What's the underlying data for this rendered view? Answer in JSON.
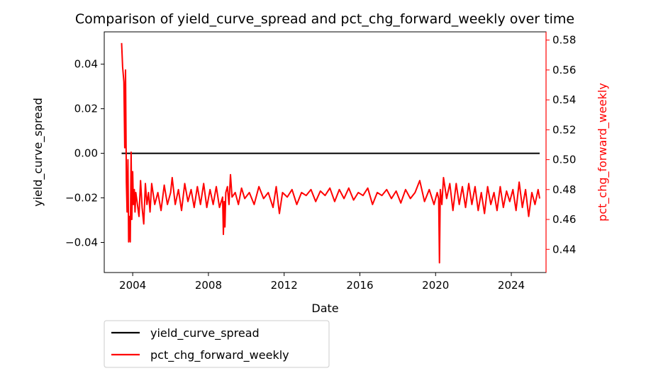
{
  "chart_data": {
    "type": "line",
    "title": "Comparison of yield_curve_spread and pct_chg_forward_weekly over time",
    "xlabel": "Date",
    "ylabel_left": "yield_curve_spread",
    "ylabel_right": "pct_chg_forward_weekly",
    "x_ticks": [
      "2004",
      "2008",
      "2012",
      "2016",
      "2020",
      "2024"
    ],
    "left_ticks": [
      "−0.04",
      "−0.02",
      "0.00",
      "0.02",
      "0.04"
    ],
    "right_ticks": [
      "0.44",
      "0.46",
      "0.48",
      "0.50",
      "0.52",
      "0.54",
      "0.56",
      "0.58"
    ],
    "xlim": [
      "2002-07-01",
      "2025-11-01"
    ],
    "ylim_left": [
      -0.0535,
      0.0545
    ],
    "ylim_right": [
      0.4245,
      0.5855
    ],
    "legend_location": "below the plot, left",
    "series": [
      {
        "name": "yield_curve_spread",
        "axis": "left",
        "color": "#000000",
        "x": [
          "2003-06-01",
          "2025-07-01"
        ],
        "y": [
          0.0,
          0.0
        ]
      },
      {
        "name": "pct_chg_forward_weekly",
        "axis": "right",
        "color": "#ff0000",
        "x": [
          "2003-06-01",
          "2003-06-20",
          "2003-07-15",
          "2003-08-01",
          "2003-08-15",
          "2003-09-01",
          "2003-09-15",
          "2003-10-01",
          "2003-10-15",
          "2003-11-01",
          "2003-11-15",
          "2003-12-01",
          "2003-12-15",
          "2004-01-01",
          "2004-01-15",
          "2004-02-01",
          "2004-02-15",
          "2004-03-01",
          "2004-04-01",
          "2004-05-01",
          "2004-06-01",
          "2004-07-01",
          "2004-08-01",
          "2004-09-01",
          "2004-10-01",
          "2004-11-01",
          "2004-12-01",
          "2005-01-01",
          "2005-03-01",
          "2005-05-01",
          "2005-07-01",
          "2005-09-01",
          "2005-11-01",
          "2006-01-01",
          "2006-02-01",
          "2006-04-01",
          "2006-06-01",
          "2006-08-01",
          "2006-10-01",
          "2006-12-01",
          "2007-02-01",
          "2007-04-01",
          "2007-06-01",
          "2007-08-01",
          "2007-10-01",
          "2007-12-01",
          "2008-02-01",
          "2008-04-01",
          "2008-06-01",
          "2008-08-01",
          "2008-10-01",
          "2008-10-15",
          "2008-11-01",
          "2008-11-15",
          "2008-12-01",
          "2009-01-01",
          "2009-02-01",
          "2009-03-01",
          "2009-04-01",
          "2009-06-01",
          "2009-08-01",
          "2009-10-01",
          "2009-12-01",
          "2010-03-01",
          "2010-06-01",
          "2010-09-01",
          "2010-12-01",
          "2011-03-01",
          "2011-06-01",
          "2011-08-01",
          "2011-10-01",
          "2011-12-01",
          "2012-03-01",
          "2012-06-01",
          "2012-09-01",
          "2012-12-01",
          "2013-03-01",
          "2013-06-01",
          "2013-09-01",
          "2013-12-01",
          "2014-03-01",
          "2014-06-01",
          "2014-09-01",
          "2014-12-01",
          "2015-03-01",
          "2015-06-01",
          "2015-09-01",
          "2015-12-01",
          "2016-03-01",
          "2016-06-01",
          "2016-09-01",
          "2016-12-01",
          "2017-03-01",
          "2017-06-01",
          "2017-09-01",
          "2017-12-01",
          "2018-03-01",
          "2018-06-01",
          "2018-09-01",
          "2018-12-01",
          "2019-03-01",
          "2019-06-01",
          "2019-09-01",
          "2019-12-01",
          "2020-02-01",
          "2020-03-01",
          "2020-03-15",
          "2020-04-01",
          "2020-05-01",
          "2020-06-01",
          "2020-08-01",
          "2020-10-01",
          "2020-12-01",
          "2021-02-01",
          "2021-04-01",
          "2021-06-01",
          "2021-08-01",
          "2021-10-01",
          "2021-12-01",
          "2022-02-01",
          "2022-04-01",
          "2022-06-01",
          "2022-08-01",
          "2022-10-01",
          "2022-12-01",
          "2023-02-01",
          "2023-04-01",
          "2023-06-01",
          "2023-08-01",
          "2023-10-01",
          "2023-12-01",
          "2024-02-01",
          "2024-04-01",
          "2024-06-01",
          "2024-08-01",
          "2024-10-01",
          "2024-12-01",
          "2025-02-01",
          "2025-04-01",
          "2025-06-01",
          "2025-07-01"
        ],
        "y": [
          0.578,
          0.562,
          0.552,
          0.508,
          0.56,
          0.485,
          0.465,
          0.5,
          0.445,
          0.462,
          0.445,
          0.505,
          0.46,
          0.492,
          0.47,
          0.48,
          0.465,
          0.478,
          0.47,
          0.462,
          0.486,
          0.468,
          0.457,
          0.484,
          0.47,
          0.478,
          0.465,
          0.484,
          0.47,
          0.478,
          0.466,
          0.483,
          0.47,
          0.478,
          0.488,
          0.47,
          0.48,
          0.466,
          0.484,
          0.472,
          0.48,
          0.468,
          0.482,
          0.47,
          0.484,
          0.468,
          0.48,
          0.47,
          0.482,
          0.468,
          0.475,
          0.45,
          0.472,
          0.455,
          0.478,
          0.482,
          0.47,
          0.49,
          0.475,
          0.478,
          0.47,
          0.481,
          0.474,
          0.478,
          0.47,
          0.482,
          0.474,
          0.478,
          0.468,
          0.482,
          0.464,
          0.478,
          0.475,
          0.48,
          0.47,
          0.478,
          0.476,
          0.48,
          0.472,
          0.479,
          0.476,
          0.481,
          0.472,
          0.48,
          0.474,
          0.481,
          0.473,
          0.478,
          0.476,
          0.481,
          0.47,
          0.478,
          0.476,
          0.48,
          0.474,
          0.479,
          0.471,
          0.48,
          0.474,
          0.478,
          0.486,
          0.472,
          0.48,
          0.47,
          0.478,
          0.474,
          0.431,
          0.48,
          0.47,
          0.488,
          0.474,
          0.484,
          0.466,
          0.484,
          0.47,
          0.482,
          0.468,
          0.484,
          0.47,
          0.482,
          0.466,
          0.478,
          0.464,
          0.482,
          0.47,
          0.478,
          0.466,
          0.482,
          0.468,
          0.479,
          0.472,
          0.48,
          0.466,
          0.485,
          0.468,
          0.48,
          0.462,
          0.478,
          0.47,
          0.48,
          0.474
        ]
      }
    ]
  }
}
